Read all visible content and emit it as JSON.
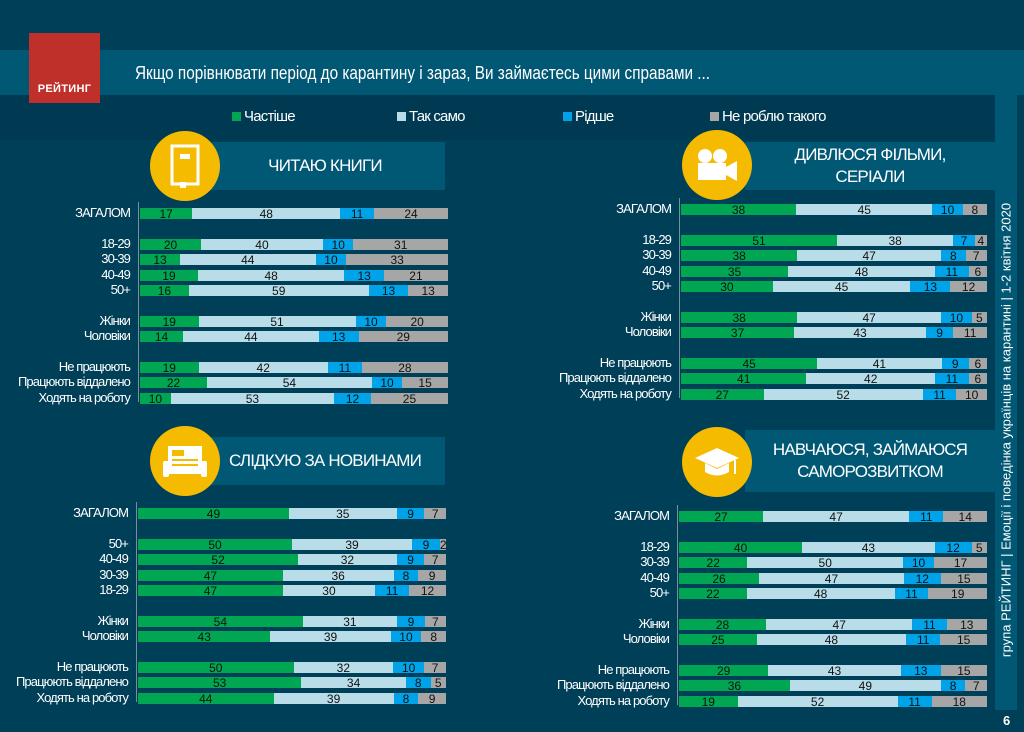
{
  "header": {
    "logo": "РЕЙТИНГ",
    "title": "Якщо порівнювати  період до карантину і зараз, Ви займаєтесь цими справами  ...",
    "side_text": "група РЕЙТИНГ  |  Емоції і поведінка українців на карантині  |  1-2 квітня 2020",
    "page_number": "6"
  },
  "chart_data": [
    {
      "type": "bar",
      "stacked": true,
      "orientation": "horizontal",
      "title": "ЧИТАЮ КНИГИ",
      "icon": "book-icon",
      "categories": [
        "ЗАГАЛОМ",
        "18-29",
        "30-39",
        "40-49",
        "50+",
        "Жінки",
        "Чоловіки",
        "Не працюють",
        "Працюють віддалено",
        "Ходять на роботу"
      ],
      "series": [
        {
          "name": "Частіше",
          "values": [
            17,
            20,
            13,
            19,
            16,
            19,
            14,
            19,
            22,
            10
          ]
        },
        {
          "name": "Так само",
          "values": [
            48,
            40,
            44,
            48,
            59,
            51,
            44,
            42,
            54,
            53
          ]
        },
        {
          "name": "Рідше",
          "values": [
            11,
            10,
            10,
            13,
            13,
            10,
            13,
            11,
            10,
            12
          ]
        },
        {
          "name": "Не роблю такого",
          "values": [
            24,
            31,
            33,
            21,
            13,
            20,
            29,
            28,
            15,
            25
          ]
        }
      ]
    },
    {
      "type": "bar",
      "stacked": true,
      "orientation": "horizontal",
      "title": "ДИВЛЮСЯ ФІЛЬМИ, СЕРІАЛИ",
      "icon": "video-camera-icon",
      "categories": [
        "ЗАГАЛОМ",
        "18-29",
        "30-39",
        "40-49",
        "50+",
        "Жінки",
        "Чоловіки",
        "Не працюють",
        "Працюють віддалено",
        "Ходять на роботу"
      ],
      "series": [
        {
          "name": "Частіше",
          "values": [
            38,
            51,
            38,
            35,
            30,
            38,
            37,
            45,
            41,
            27
          ]
        },
        {
          "name": "Так само",
          "values": [
            45,
            38,
            47,
            48,
            45,
            47,
            43,
            41,
            42,
            52
          ]
        },
        {
          "name": "Рідше",
          "values": [
            10,
            7,
            8,
            11,
            13,
            10,
            9,
            9,
            11,
            11
          ]
        },
        {
          "name": "Не роблю такого",
          "values": [
            8,
            4,
            7,
            6,
            12,
            5,
            11,
            6,
            6,
            10
          ]
        }
      ]
    },
    {
      "type": "bar",
      "stacked": true,
      "orientation": "horizontal",
      "title": "СЛІДКУЮ ЗА НОВИНАМИ",
      "icon": "newspaper-icon",
      "categories": [
        "ЗАГАЛОМ",
        "50+",
        "40-49",
        "30-39",
        "18-29",
        "Жінки",
        "Чоловіки",
        "Не працюють",
        "Працюють віддалено",
        "Ходять на роботу"
      ],
      "series": [
        {
          "name": "Частіше",
          "values": [
            49,
            50,
            52,
            47,
            47,
            54,
            43,
            50,
            53,
            44
          ]
        },
        {
          "name": "Так само",
          "values": [
            35,
            39,
            32,
            36,
            30,
            31,
            39,
            32,
            34,
            39
          ]
        },
        {
          "name": "Рідше",
          "values": [
            9,
            9,
            9,
            8,
            11,
            9,
            10,
            10,
            8,
            8
          ]
        },
        {
          "name": "Не роблю такого",
          "values": [
            7,
            2,
            7,
            9,
            12,
            7,
            8,
            7,
            5,
            9
          ]
        }
      ]
    },
    {
      "type": "bar",
      "stacked": true,
      "orientation": "horizontal",
      "title": "НАВЧАЮСЯ, ЗАЙМАЮСЯ САМОРОЗВИТКОМ",
      "icon": "graduation-cap-icon",
      "categories": [
        "ЗАГАЛОМ",
        "18-29",
        "30-39",
        "40-49",
        "50+",
        "Жінки",
        "Чоловіки",
        "Не працюють",
        "Працюють віддалено",
        "Ходять на роботу"
      ],
      "series": [
        {
          "name": "Частіше",
          "values": [
            27,
            40,
            22,
            26,
            22,
            28,
            25,
            29,
            36,
            19
          ]
        },
        {
          "name": "Так само",
          "values": [
            47,
            43,
            50,
            47,
            48,
            47,
            48,
            43,
            49,
            52
          ]
        },
        {
          "name": "Рідше",
          "values": [
            11,
            12,
            10,
            12,
            11,
            11,
            11,
            13,
            8,
            11
          ]
        },
        {
          "name": "Не роблю такого",
          "values": [
            14,
            5,
            17,
            15,
            19,
            13,
            15,
            15,
            7,
            18
          ]
        }
      ]
    }
  ],
  "legend": [
    {
      "label": "Частіше",
      "color": "#00a651"
    },
    {
      "label": "Так само",
      "color": "#b8dde8"
    },
    {
      "label": "Рідше",
      "color": "#00a3e8"
    },
    {
      "label": "Не роблю такого",
      "color": "#a6a6a6"
    }
  ]
}
